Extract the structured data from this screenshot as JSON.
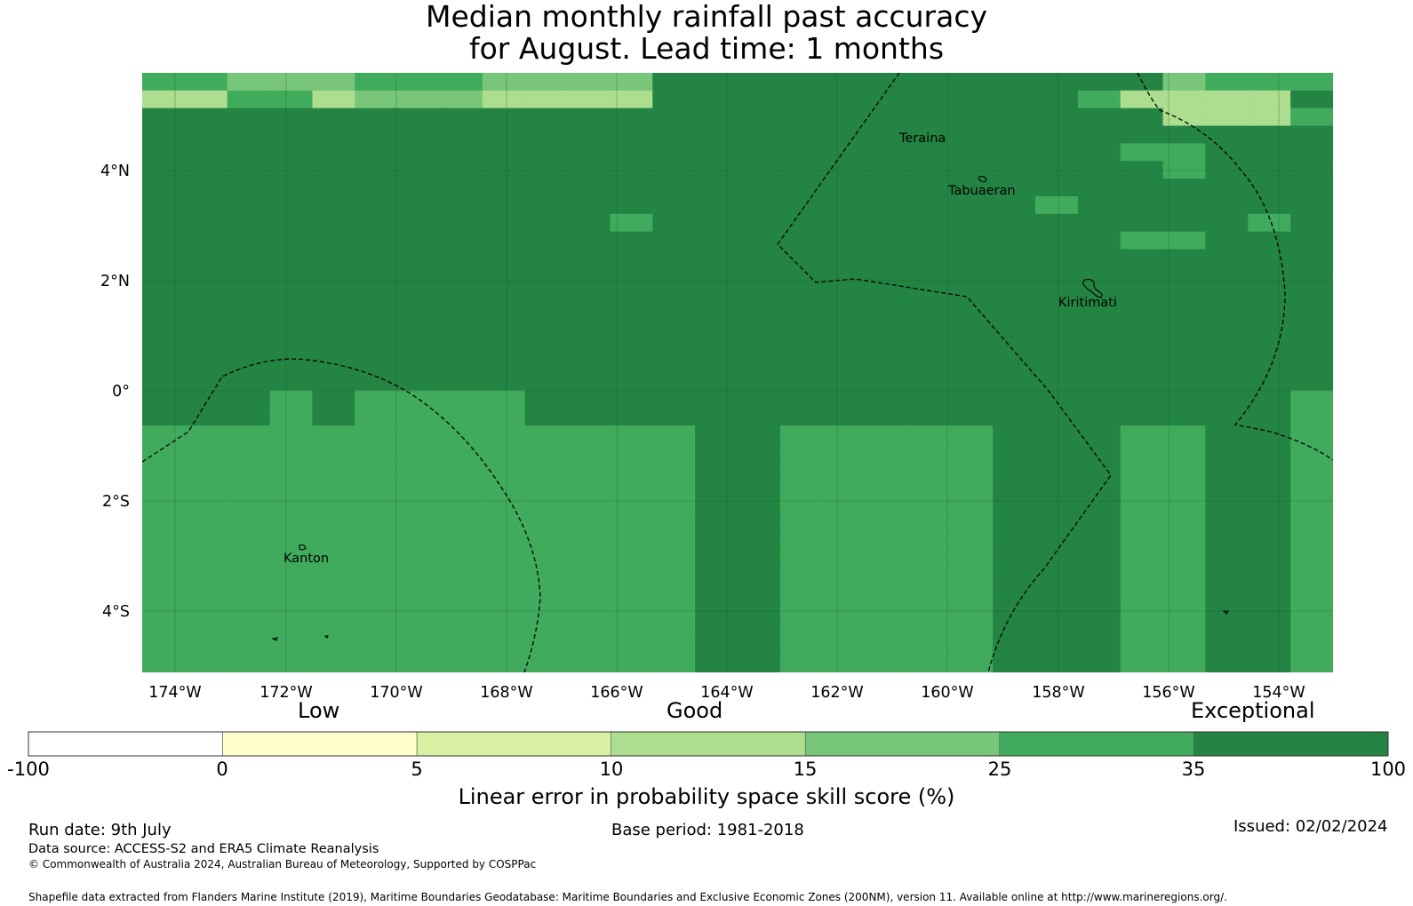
{
  "title": {
    "line1": "Median monthly rainfall past accuracy",
    "line2": "for August. Lead time: 1 months"
  },
  "map": {
    "lon_ticks": [
      "174°W",
      "172°W",
      "170°W",
      "168°W",
      "166°W",
      "164°W",
      "162°W",
      "160°W",
      "158°W",
      "156°W",
      "154°W"
    ],
    "lat_ticks": [
      "4°N",
      "2°N",
      "0°",
      "2°S",
      "4°S"
    ],
    "places": [
      "Teraina",
      "Tabuaeran",
      "Kiritimati",
      "Kanton"
    ],
    "class_colors": [
      "#ffffff",
      "#ffffcc",
      "#d9f0a3",
      "#addd8e",
      "#78c679",
      "#41ab5d",
      "#238443"
    ],
    "grid_classes": [
      "5544455544446666666666664555",
      "3355344433336666666666533336",
      "6666666666666666666666663335",
      "6666666666666666666666666666",
      "6666666666666666666666655666",
      "6666666666666666666666665666",
      "6666666666666666666666666666",
      "6666666666666666666665666666",
      "6666666666656666666666666656",
      "6666666666666666666666655666",
      "6666666666666666666666666666",
      "6666666666666666666666666666",
      "6666666666666666666666666666",
      "6666666666666666666666666666",
      "6666666666666666666666666666",
      "6666666666666666666666666666",
      "6666666666666666666666666666",
      "6666666666666666666666666666",
      "6665655556666666666666666665",
      "6665655556666666666666666665",
      "5555555555555665555566655665",
      "5555555555555665555566655665",
      "5555555555555665555566655665",
      "5555555555555665555566655665",
      "5555555555555665555566655665",
      "5555555555555665555566655665",
      "5555555555555665555566655665",
      "5555555555555665555566655665",
      "5555555555555665555566655665",
      "5555555555555665555566655665",
      "5555555555555665555566655665",
      "5555555555555665555566655665",
      "5555555555555665555566655665",
      "5555555555555665555566655665"
    ]
  },
  "legend": {
    "categories": [
      "Low",
      "Good",
      "Exceptional"
    ],
    "boundaries": [
      "-100",
      "0",
      "5",
      "10",
      "15",
      "25",
      "35",
      "100"
    ],
    "colors": [
      "#ffffff",
      "#ffffcc",
      "#d9f0a3",
      "#addd8e",
      "#78c679",
      "#41ab5d",
      "#238443"
    ],
    "label": "Linear error in probability space skill score (%)"
  },
  "footer": {
    "run_date": "Run date: 9th July",
    "base_period": "Base period: 1981-2018",
    "issued": "Issued: 02/02/2024",
    "data_source": "Data source: ACCESS-S2 and ERA5 Climate Reanalysis",
    "copyright": "© Commonwealth of Australia 2024, Australian Bureau of Meteorology, Supported by COSPPac",
    "shapefile": "Shapefile data extracted from Flanders Marine Institute (2019), Maritime Boundaries Geodatabase: Maritime Boundaries and Exclusive Economic Zones (200NM), version 11. Available online at http://www.marineregions.org/."
  }
}
